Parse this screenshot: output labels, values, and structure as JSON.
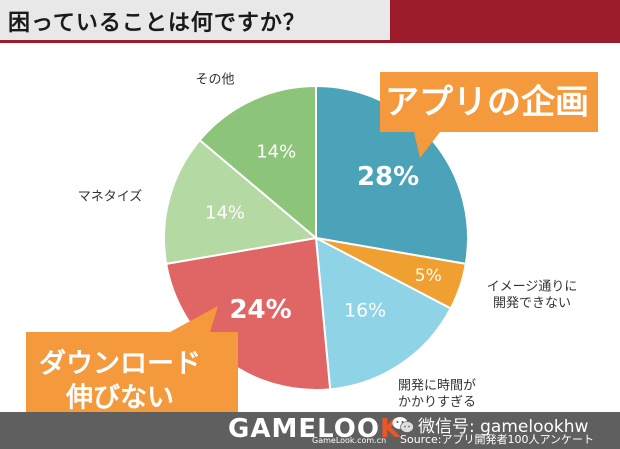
{
  "header": {
    "title": "困っていることは何ですか？"
  },
  "chart_data": {
    "type": "pie",
    "values": [
      28,
      5,
      16,
      24,
      14,
      14
    ],
    "value_labels": [
      "28%",
      "5%",
      "16%",
      "24%",
      "14%",
      "14%"
    ],
    "categories": [
      "アプリの企画",
      "イメージ通りに開発できない",
      "開発に時間がかかりすぎる",
      "ダウンロード伸びない",
      "マネタイズ",
      "その他"
    ],
    "category_label_lines": [
      [
        "アプリの企画"
      ],
      [
        "イメージ通りに",
        "開発できない"
      ],
      [
        "開発に時間が",
        "かかりすぎる"
      ],
      [
        "ダウンロード",
        "伸びない"
      ],
      [
        "マネタイズ"
      ],
      [
        "その他"
      ]
    ],
    "colors": [
      "#4aa3b8",
      "#f0a030",
      "#8ed3e6",
      "#e06666",
      "#b5d9a3",
      "#8cc47a"
    ],
    "callout_color": "#f59a3c"
  },
  "footer": {
    "logo_main": "GAMELOO",
    "logo_accent": "K",
    "logo_sub": "GameLook.com.cn",
    "wechat": "微信号: gamelookhw",
    "source": "Source:アプリ開発者100人アンケート"
  }
}
